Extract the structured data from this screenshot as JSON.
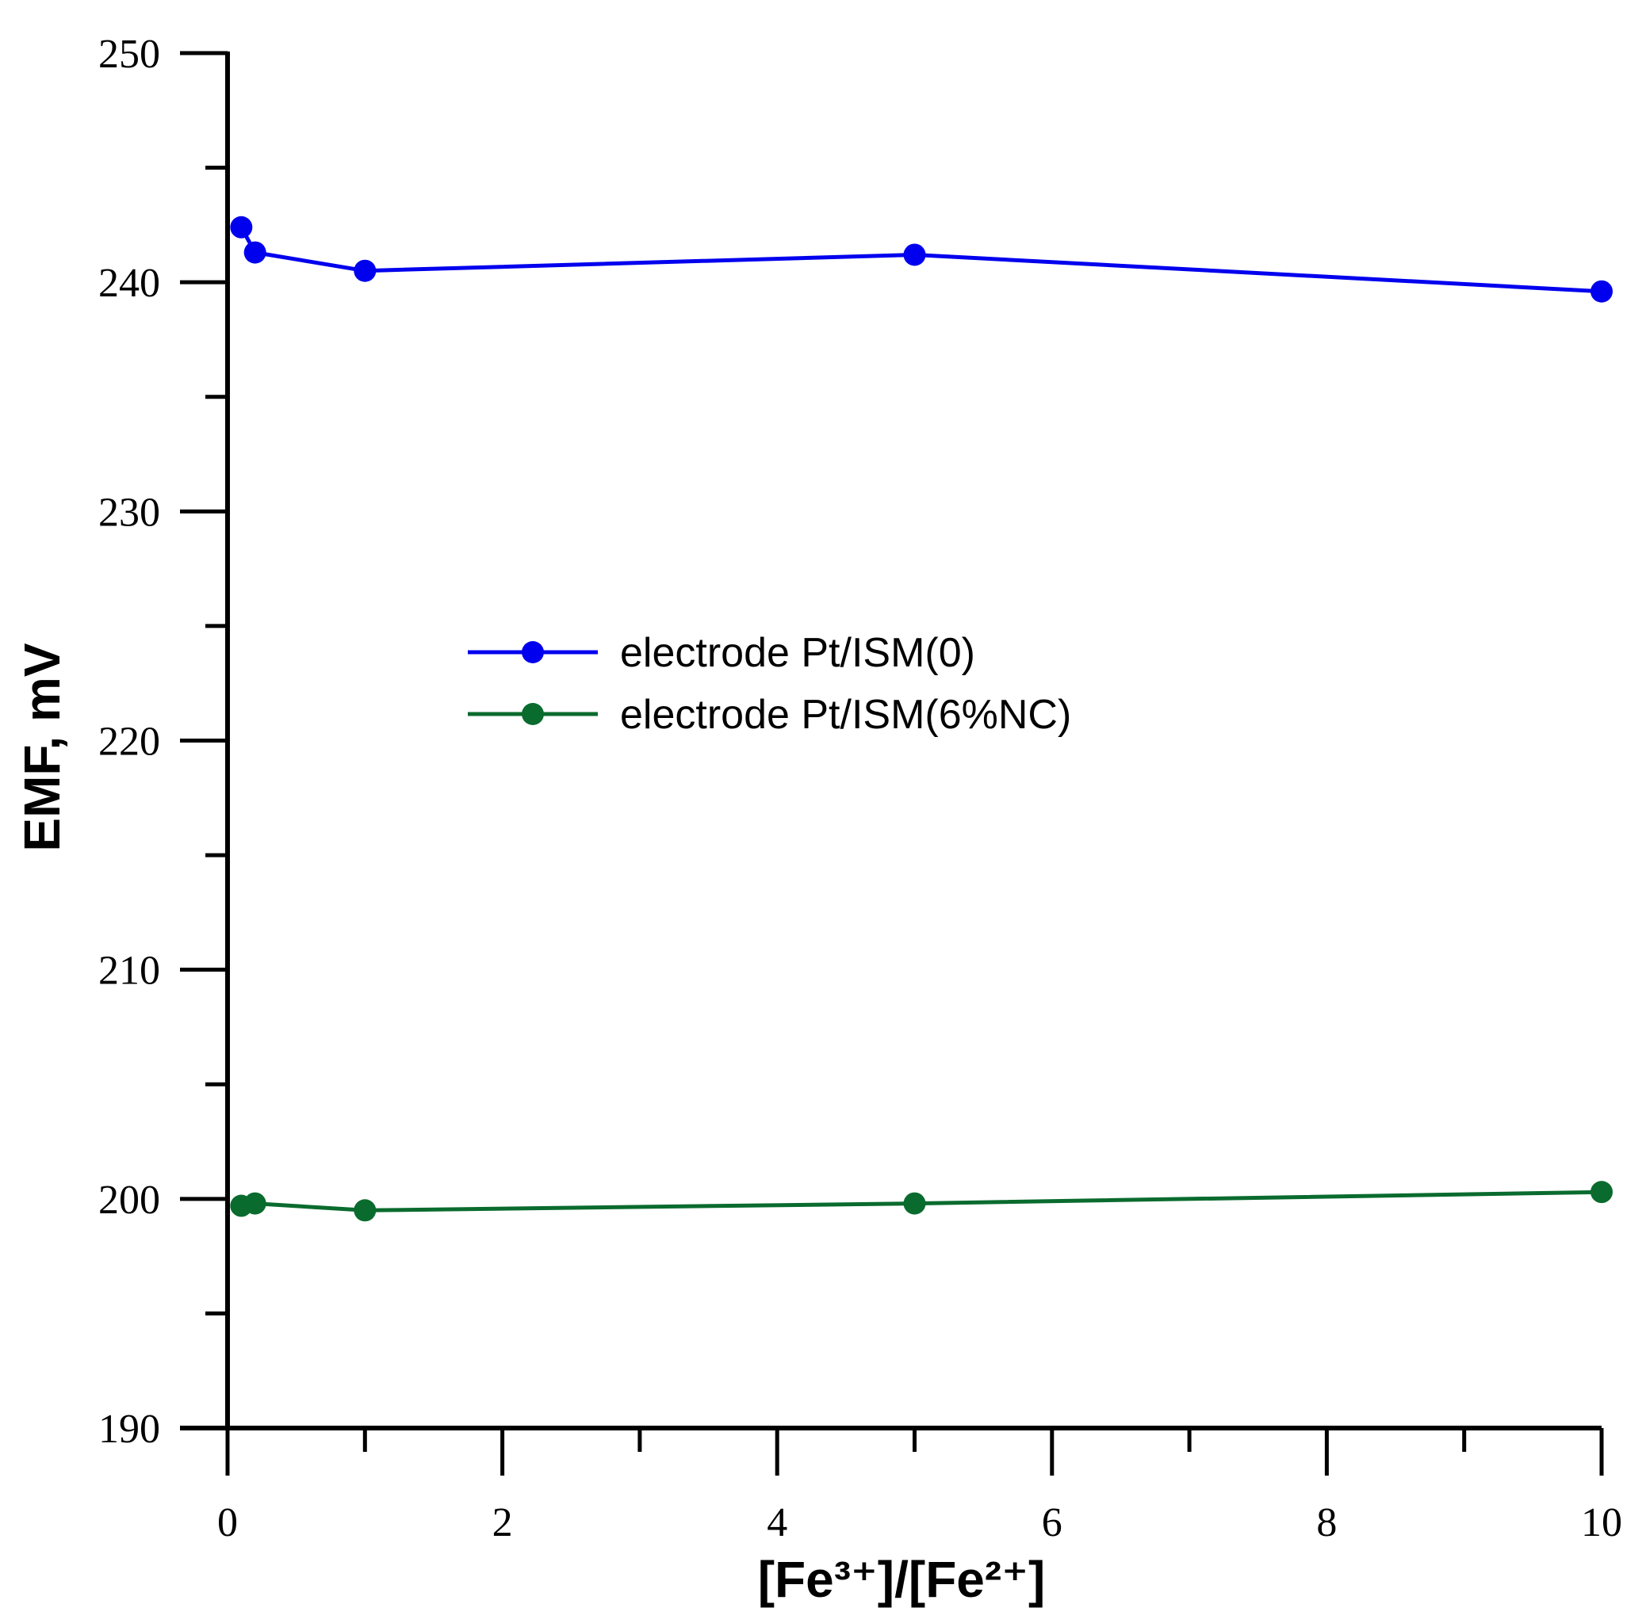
{
  "chart_data": {
    "type": "line",
    "title": "",
    "xlabel": "[Fe³⁺]/[Fe²⁺]",
    "ylabel": "EMF, mV",
    "xlim": [
      0,
      10
    ],
    "ylim": [
      190,
      250
    ],
    "x_major_ticks": [
      0,
      2,
      4,
      6,
      8,
      10
    ],
    "x_minor_ticks": [
      1,
      3,
      5,
      7,
      9
    ],
    "y_major_ticks": [
      190,
      200,
      210,
      220,
      230,
      240,
      250
    ],
    "y_minor_ticks": [
      195,
      205,
      215,
      225,
      235,
      245
    ],
    "x_tick_labels": [
      "0",
      "2",
      "4",
      "6",
      "8",
      "10"
    ],
    "y_tick_labels": [
      "190",
      "200",
      "210",
      "220",
      "230",
      "240",
      "250"
    ],
    "grid": false,
    "legend_position": "center",
    "series": [
      {
        "name": "electrode Pt/ISM(0)",
        "color": "#0000ee",
        "x": [
          0.1,
          0.2,
          1,
          5,
          10
        ],
        "y": [
          242.4,
          241.3,
          240.5,
          241.2,
          239.6
        ]
      },
      {
        "name": "electrode Pt/ISM(6%NC)",
        "color": "#0a6b2e",
        "x": [
          0.1,
          0.2,
          1,
          5,
          10
        ],
        "y": [
          199.7,
          199.8,
          199.5,
          199.8,
          200.3
        ]
      }
    ]
  }
}
